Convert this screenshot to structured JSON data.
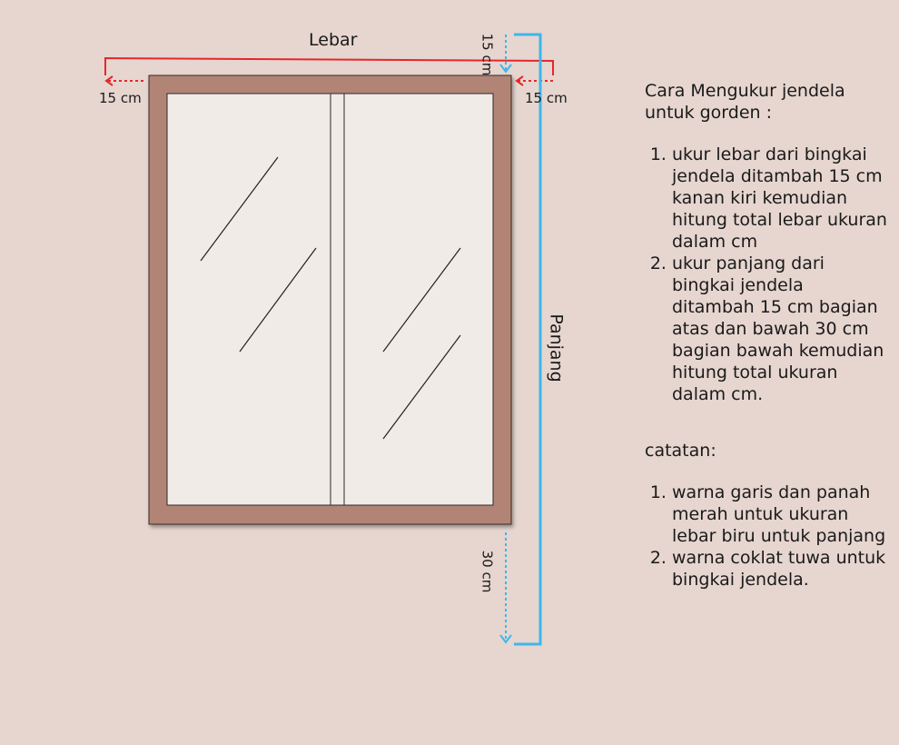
{
  "diagram": {
    "width_label": "Lebar",
    "height_label": "Panjang",
    "left_margin": "15 cm",
    "right_margin": "15 cm",
    "top_margin": "15 cm",
    "bottom_margin": "30 cm"
  },
  "instructions": {
    "heading": "Cara Mengukur jendela untuk gorden :",
    "steps": [
      "ukur lebar dari bingkai jendela ditambah 15 cm kanan kiri kemudian hitung total lebar ukuran dalam cm",
      "ukur panjang dari bingkai jendela ditambah 15 cm bagian atas dan bawah 30 cm bagian bawah kemudian hitung total ukuran dalam cm."
    ]
  },
  "notes": {
    "heading": "catatan:",
    "items": [
      "warna garis dan panah merah untuk ukuran lebar biru untuk panjang",
      "warna coklat tuwa untuk bingkai jendela."
    ]
  },
  "colors": {
    "background": "#e6d6cf",
    "frame": "#b18476",
    "glass": "#f1ebe8",
    "width_line": "#e8262b",
    "height_line": "#3fb6ec"
  }
}
